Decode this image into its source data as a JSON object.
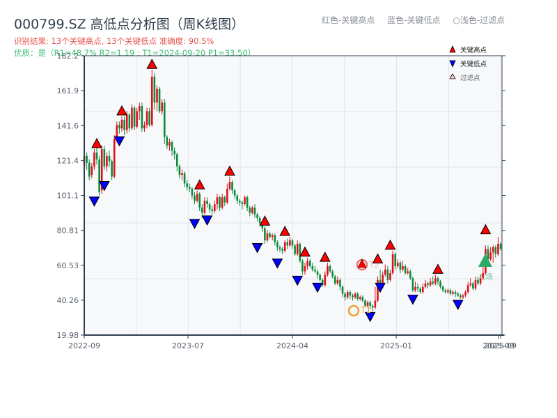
{
  "header": {
    "title": "000799.SZ 高低点分析图（周K线图）",
    "result_line": "识别结果: 13个关键高点, 13个关键低点  准确度: 90.5%",
    "quality_line": "优质：是（R1=48.7%  R2=1.19 ; T1=2024-09-20 P1=33.50）"
  },
  "top_legend": {
    "red_label": "红色-关键高点",
    "blue_label": "蓝色-关键低点",
    "light_label": "○浅色-过滤点"
  },
  "colors": {
    "up": "#e0101a",
    "down": "#0a8a3a",
    "high_marker": "#ff0000",
    "low_marker": "#0000ff",
    "t1": "#f0a030",
    "t2": "#e8544e",
    "entry": "#2eaa66",
    "plot_bg": "#f6f8fa",
    "grid": "#e2e5ea",
    "axis": "#2e3e50"
  },
  "chart_data": {
    "type": "candlestick",
    "title": "000799.SZ 高低点分析图（周K线图）",
    "xlabel": "",
    "ylabel": "",
    "ylim": [
      19.98,
      182.2
    ],
    "y_ticks": [
      "19.98",
      "40.26",
      "60.53",
      "80.81",
      "101.1",
      "121.4",
      "141.6",
      "161.9",
      "182.2"
    ],
    "x_ticks": [
      "2022-09",
      "2023-07",
      "2024-04",
      "2025-01",
      "2025-09"
    ],
    "x_tick_overlap_label": "2025-09",
    "legend": [
      {
        "label": "关键高点",
        "marker": "red-up-triangle"
      },
      {
        "label": "关键低点",
        "marker": "blue-down-triangle"
      },
      {
        "label": "过滤点",
        "marker": "light-up-triangle"
      }
    ],
    "annotations": [
      {
        "label": "T1",
        "date": "2024-09-20",
        "price": 33.5
      },
      {
        "label": "T2",
        "price": 61.0
      },
      {
        "label": "入场",
        "price": 63.0
      }
    ],
    "candles_ohlc": [
      [
        118,
        124,
        126,
        113
      ],
      [
        124,
        120,
        126,
        116
      ],
      [
        120,
        112,
        122,
        110
      ],
      [
        113,
        118,
        120,
        111
      ],
      [
        118,
        126,
        128,
        116
      ],
      [
        126,
        122,
        129,
        119
      ],
      [
        122,
        103,
        124,
        101
      ],
      [
        104,
        128,
        130,
        102
      ],
      [
        128,
        118,
        130,
        116
      ],
      [
        118,
        124,
        126,
        115
      ],
      [
        124,
        121,
        127,
        118
      ],
      [
        121,
        112,
        122,
        110
      ],
      [
        112,
        134,
        136,
        111
      ],
      [
        134,
        142,
        144,
        132
      ],
      [
        142,
        140,
        144,
        137
      ],
      [
        140,
        145,
        147,
        138
      ],
      [
        145,
        139,
        147,
        136
      ],
      [
        139,
        148,
        150,
        137
      ],
      [
        148,
        140,
        149,
        138
      ],
      [
        140,
        152,
        154,
        139
      ],
      [
        152,
        141,
        153,
        139
      ],
      [
        141,
        150,
        152,
        140
      ],
      [
        150,
        153,
        155,
        145
      ],
      [
        153,
        140,
        155,
        138
      ],
      [
        140,
        142,
        144,
        138
      ],
      [
        142,
        150,
        152,
        140
      ],
      [
        150,
        142,
        152,
        141
      ],
      [
        142,
        170,
        174,
        141
      ],
      [
        170,
        155,
        172,
        151
      ],
      [
        155,
        163,
        165,
        150
      ],
      [
        163,
        150,
        164,
        149
      ],
      [
        150,
        155,
        157,
        148
      ],
      [
        155,
        135,
        157,
        131
      ],
      [
        135,
        130,
        136,
        128
      ],
      [
        130,
        132,
        134,
        127
      ],
      [
        132,
        127,
        133,
        124
      ],
      [
        127,
        125,
        129,
        122
      ],
      [
        125,
        118,
        126,
        115
      ],
      [
        118,
        113,
        119,
        111
      ],
      [
        113,
        114,
        116,
        110
      ],
      [
        114,
        108,
        115,
        106
      ],
      [
        108,
        106,
        110,
        104
      ],
      [
        106,
        105,
        108,
        103
      ],
      [
        105,
        101,
        106,
        99
      ],
      [
        101,
        98,
        103,
        96
      ],
      [
        98,
        102,
        104,
        97
      ],
      [
        102,
        94,
        103,
        92
      ],
      [
        94,
        91,
        96,
        88
      ],
      [
        91,
        98,
        100,
        90
      ],
      [
        98,
        96,
        100,
        94
      ],
      [
        96,
        93,
        97,
        91
      ],
      [
        93,
        92,
        95,
        90
      ],
      [
        92,
        96,
        98,
        91
      ],
      [
        96,
        100,
        102,
        93
      ],
      [
        100,
        94,
        101,
        92
      ],
      [
        94,
        100,
        102,
        93
      ],
      [
        100,
        97,
        101,
        95
      ],
      [
        97,
        105,
        108,
        96
      ],
      [
        105,
        109,
        112,
        104
      ],
      [
        109,
        104,
        110,
        102
      ],
      [
        104,
        101,
        105,
        99
      ],
      [
        101,
        98,
        102,
        96
      ],
      [
        98,
        97,
        99,
        95
      ],
      [
        97,
        96,
        98,
        93
      ],
      [
        96,
        100,
        101,
        95
      ],
      [
        100,
        94,
        101,
        92
      ],
      [
        94,
        91,
        95,
        89
      ],
      [
        91,
        94,
        95,
        90
      ],
      [
        94,
        90,
        96,
        88
      ],
      [
        90,
        88,
        91,
        86
      ],
      [
        88,
        85,
        89,
        83
      ],
      [
        85,
        82,
        86,
        80
      ],
      [
        82,
        75,
        83,
        73
      ],
      [
        75,
        79,
        81,
        74
      ],
      [
        79,
        77,
        80,
        76
      ],
      [
        77,
        78,
        79,
        75
      ],
      [
        78,
        74,
        79,
        72
      ],
      [
        74,
        71,
        75,
        69
      ],
      [
        71,
        70,
        72,
        68
      ],
      [
        70,
        69,
        71,
        67
      ],
      [
        69,
        74,
        75,
        68
      ],
      [
        74,
        72,
        76,
        70
      ],
      [
        72,
        75,
        77,
        71
      ],
      [
        75,
        72,
        76,
        70
      ],
      [
        72,
        67,
        73,
        66
      ],
      [
        67,
        73,
        75,
        66
      ],
      [
        73,
        63,
        74,
        62
      ],
      [
        63,
        57,
        64,
        55
      ],
      [
        57,
        60,
        62,
        55
      ],
      [
        60,
        63,
        65,
        58
      ],
      [
        63,
        60,
        64,
        59
      ],
      [
        60,
        58,
        62,
        57
      ],
      [
        58,
        57,
        60,
        56
      ],
      [
        57,
        55,
        58,
        53
      ],
      [
        55,
        52,
        56,
        51
      ],
      [
        52,
        49,
        53,
        48
      ],
      [
        49,
        55,
        57,
        48
      ],
      [
        55,
        60,
        62,
        54
      ],
      [
        60,
        57,
        61,
        56
      ],
      [
        57,
        54,
        58,
        53
      ],
      [
        54,
        50,
        55,
        49
      ],
      [
        50,
        52,
        54,
        49
      ],
      [
        52,
        48,
        53,
        46
      ],
      [
        48,
        44,
        49,
        42
      ],
      [
        44,
        42,
        45,
        40
      ],
      [
        42,
        45,
        46,
        41
      ],
      [
        45,
        43,
        46,
        41
      ],
      [
        43,
        42,
        44,
        40
      ],
      [
        42,
        44,
        45,
        41
      ],
      [
        44,
        41,
        45,
        40
      ],
      [
        41,
        42,
        43,
        40
      ],
      [
        42,
        40,
        43,
        39
      ],
      [
        40,
        37,
        41,
        36
      ],
      [
        37,
        39,
        40,
        36
      ],
      [
        39,
        37,
        40,
        35
      ],
      [
        37,
        36,
        38,
        34
      ],
      [
        36,
        40,
        48,
        35
      ],
      [
        40,
        52,
        54,
        39
      ],
      [
        52,
        48,
        58,
        47
      ],
      [
        48,
        55,
        57,
        47
      ],
      [
        55,
        58,
        61,
        54
      ],
      [
        58,
        52,
        60,
        50
      ],
      [
        52,
        56,
        58,
        51
      ],
      [
        56,
        67,
        69,
        55
      ],
      [
        67,
        60,
        68,
        58
      ],
      [
        60,
        62,
        64,
        59
      ],
      [
        62,
        58,
        63,
        56
      ],
      [
        58,
        60,
        63,
        57
      ],
      [
        60,
        56,
        61,
        55
      ],
      [
        56,
        57,
        59,
        55
      ],
      [
        57,
        53,
        58,
        52
      ],
      [
        53,
        46,
        54,
        45
      ],
      [
        46,
        48,
        51,
        45
      ],
      [
        48,
        47,
        50,
        45
      ],
      [
        47,
        45,
        48,
        44
      ],
      [
        45,
        48,
        50,
        44
      ],
      [
        48,
        50,
        52,
        47
      ],
      [
        50,
        49,
        51,
        47
      ],
      [
        49,
        51,
        53,
        48
      ],
      [
        51,
        50,
        54,
        49
      ],
      [
        50,
        53,
        55,
        49
      ],
      [
        53,
        51,
        54,
        49
      ],
      [
        51,
        48,
        52,
        47
      ],
      [
        48,
        46,
        49,
        45
      ],
      [
        46,
        45,
        47,
        44
      ],
      [
        45,
        46,
        47,
        44
      ],
      [
        46,
        44,
        47,
        43
      ],
      [
        44,
        45,
        46,
        43
      ],
      [
        45,
        44,
        46,
        42
      ],
      [
        44,
        43,
        45,
        42
      ],
      [
        43,
        42,
        44,
        41
      ],
      [
        42,
        43,
        44,
        41
      ],
      [
        43,
        45,
        46,
        42
      ],
      [
        45,
        49,
        51,
        44
      ],
      [
        49,
        50,
        53,
        48
      ],
      [
        50,
        47,
        51,
        46
      ],
      [
        47,
        52,
        54,
        46
      ],
      [
        52,
        50,
        54,
        49
      ],
      [
        50,
        53,
        55,
        49
      ],
      [
        53,
        56,
        61,
        52
      ],
      [
        56,
        70,
        72,
        55
      ],
      [
        70,
        64,
        72,
        62
      ],
      [
        64,
        68,
        71,
        63
      ],
      [
        68,
        71,
        72,
        62
      ],
      [
        71,
        67,
        72,
        65
      ],
      [
        67,
        73,
        77,
        66
      ],
      [
        73,
        70,
        74,
        69
      ]
    ],
    "key_highs": [
      {
        "index": 5,
        "price": 128
      },
      {
        "index": 15,
        "price": 147
      },
      {
        "index": 27,
        "price": 174
      },
      {
        "index": 46,
        "price": 104
      },
      {
        "index": 58,
        "price": 112
      },
      {
        "index": 72,
        "price": 83
      },
      {
        "index": 80,
        "price": 77
      },
      {
        "index": 88,
        "price": 65
      },
      {
        "index": 96,
        "price": 62
      },
      {
        "index": 117,
        "price": 61
      },
      {
        "index": 122,
        "price": 69
      },
      {
        "index": 141,
        "price": 55
      },
      {
        "index": 160,
        "price": 78
      }
    ],
    "key_lows": [
      {
        "index": 4,
        "price": 101
      },
      {
        "index": 8,
        "price": 110
      },
      {
        "index": 14,
        "price": 136
      },
      {
        "index": 44,
        "price": 88
      },
      {
        "index": 49,
        "price": 90
      },
      {
        "index": 69,
        "price": 74
      },
      {
        "index": 77,
        "price": 65
      },
      {
        "index": 85,
        "price": 55
      },
      {
        "index": 93,
        "price": 51
      },
      {
        "index": 114,
        "price": 34
      },
      {
        "index": 118,
        "price": 51
      },
      {
        "index": 131,
        "price": 44
      },
      {
        "index": 149,
        "price": 41
      }
    ]
  }
}
